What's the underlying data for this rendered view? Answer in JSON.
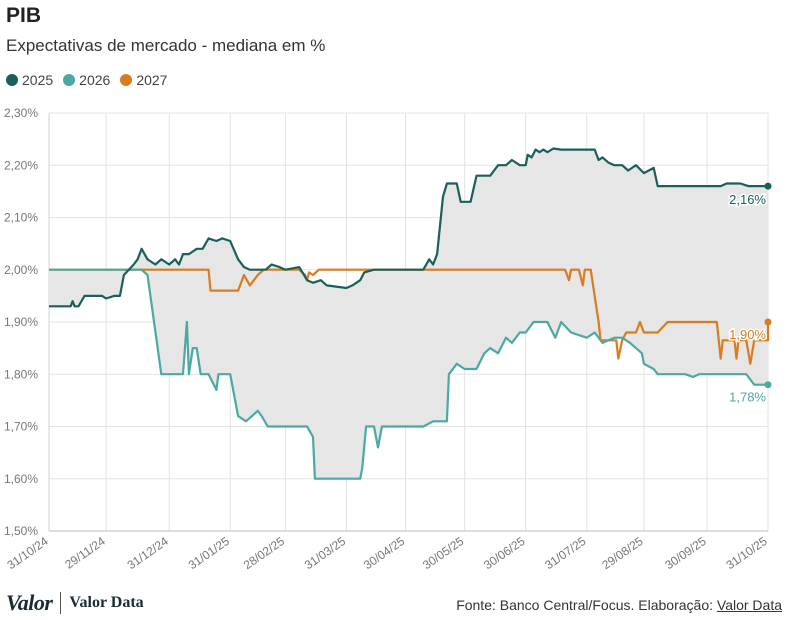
{
  "header": {
    "title": "PIB",
    "subtitle": "Expectativas de mercado - mediana em %"
  },
  "footer": {
    "logo_main": "Valor",
    "logo_secondary": "Valor Data",
    "source_prefix": "Fonte: Banco Central/Focus. Elaboração: ",
    "source_link": "Valor Data"
  },
  "chart_data": {
    "type": "line",
    "xlim": [
      "2024-10-31",
      "2025-10-31"
    ],
    "ylim": [
      1.5,
      2.3
    ],
    "yticks": [
      1.5,
      1.6,
      1.7,
      1.8,
      1.9,
      2.0,
      2.1,
      2.2,
      2.3
    ],
    "ytick_labels": [
      "1,50%",
      "1,60%",
      "1,70%",
      "1,80%",
      "1,90%",
      "2,00%",
      "2,10%",
      "2,20%",
      "2,30%"
    ],
    "xticks": [
      "2024-10-31",
      "2024-11-29",
      "2024-12-31",
      "2025-01-31",
      "2025-02-28",
      "2025-03-31",
      "2025-04-30",
      "2025-05-30",
      "2025-06-30",
      "2025-07-31",
      "2025-08-29",
      "2025-09-30",
      "2025-10-31"
    ],
    "xtick_labels": [
      "31/10/24",
      "29/11/24",
      "31/12/24",
      "31/01/25",
      "28/02/25",
      "31/03/25",
      "30/04/25",
      "30/05/25",
      "30/06/25",
      "31/07/25",
      "29/08/25",
      "30/09/25",
      "31/10/25"
    ],
    "grid": true,
    "legend_position": "top-left",
    "shaded_band": "between 2025 and 2026 series",
    "series": [
      {
        "name": "2025",
        "color": "#1b5f5c",
        "end_label": "2,16%",
        "points": [
          [
            "2024-10-31",
            1.93
          ],
          [
            "2024-11-01",
            1.93
          ],
          [
            "2024-11-08",
            1.93
          ],
          [
            "2024-11-11",
            1.93
          ],
          [
            "2024-11-12",
            1.94
          ],
          [
            "2024-11-13",
            1.93
          ],
          [
            "2024-11-15",
            1.93
          ],
          [
            "2024-11-18",
            1.95
          ],
          [
            "2024-11-22",
            1.95
          ],
          [
            "2024-11-26",
            1.95
          ],
          [
            "2024-11-27",
            1.95
          ],
          [
            "2024-11-29",
            1.945
          ],
          [
            "2024-12-03",
            1.95
          ],
          [
            "2024-12-06",
            1.95
          ],
          [
            "2024-12-08",
            1.99
          ],
          [
            "2024-12-13",
            2.01
          ],
          [
            "2024-12-15",
            2.02
          ],
          [
            "2024-12-17",
            2.04
          ],
          [
            "2024-12-20",
            2.02
          ],
          [
            "2024-12-24",
            2.01
          ],
          [
            "2024-12-27",
            2.02
          ],
          [
            "2024-12-31",
            2.01
          ],
          [
            "2025-01-03",
            2.02
          ],
          [
            "2025-01-05",
            2.01
          ],
          [
            "2025-01-07",
            2.03
          ],
          [
            "2025-01-10",
            2.03
          ],
          [
            "2025-01-14",
            2.04
          ],
          [
            "2025-01-17",
            2.04
          ],
          [
            "2025-01-20",
            2.06
          ],
          [
            "2025-01-24",
            2.055
          ],
          [
            "2025-01-27",
            2.06
          ],
          [
            "2025-01-31",
            2.055
          ],
          [
            "2025-02-04",
            2.02
          ],
          [
            "2025-02-07",
            2.005
          ],
          [
            "2025-02-10",
            2.0
          ],
          [
            "2025-02-14",
            2.0
          ],
          [
            "2025-02-18",
            2.0
          ],
          [
            "2025-02-21",
            2.01
          ],
          [
            "2025-02-25",
            2.005
          ],
          [
            "2025-02-28",
            2.0
          ],
          [
            "2025-03-07",
            2.005
          ],
          [
            "2025-03-11",
            1.98
          ],
          [
            "2025-03-14",
            1.975
          ],
          [
            "2025-03-18",
            1.98
          ],
          [
            "2025-03-21",
            1.97
          ],
          [
            "2025-03-31",
            1.965
          ],
          [
            "2025-04-03",
            1.97
          ],
          [
            "2025-04-07",
            1.98
          ],
          [
            "2025-04-09",
            1.995
          ],
          [
            "2025-04-14",
            2.0
          ],
          [
            "2025-04-30",
            2.0
          ],
          [
            "2025-05-09",
            2.0
          ],
          [
            "2025-05-12",
            2.02
          ],
          [
            "2025-05-14",
            2.01
          ],
          [
            "2025-05-16",
            2.03
          ],
          [
            "2025-05-19",
            2.14
          ],
          [
            "2025-05-21",
            2.165
          ],
          [
            "2025-05-26",
            2.165
          ],
          [
            "2025-05-28",
            2.13
          ],
          [
            "2025-06-02",
            2.13
          ],
          [
            "2025-06-05",
            2.18
          ],
          [
            "2025-06-12",
            2.18
          ],
          [
            "2025-06-16",
            2.2
          ],
          [
            "2025-06-20",
            2.2
          ],
          [
            "2025-06-23",
            2.21
          ],
          [
            "2025-06-27",
            2.2
          ],
          [
            "2025-06-30",
            2.2
          ],
          [
            "2025-07-01",
            2.22
          ],
          [
            "2025-07-03",
            2.215
          ],
          [
            "2025-07-05",
            2.23
          ],
          [
            "2025-07-07",
            2.225
          ],
          [
            "2025-07-09",
            2.23
          ],
          [
            "2025-07-11",
            2.225
          ],
          [
            "2025-07-14",
            2.232
          ],
          [
            "2025-07-18",
            2.23
          ],
          [
            "2025-07-24",
            2.23
          ],
          [
            "2025-07-31",
            2.23
          ],
          [
            "2025-08-04",
            2.23
          ],
          [
            "2025-08-06",
            2.21
          ],
          [
            "2025-08-08",
            2.215
          ],
          [
            "2025-08-11",
            2.205
          ],
          [
            "2025-08-14",
            2.2
          ],
          [
            "2025-08-18",
            2.2
          ],
          [
            "2025-08-21",
            2.19
          ],
          [
            "2025-08-25",
            2.2
          ],
          [
            "2025-08-29",
            2.185
          ],
          [
            "2025-09-03",
            2.195
          ],
          [
            "2025-09-05",
            2.16
          ],
          [
            "2025-09-12",
            2.16
          ],
          [
            "2025-09-19",
            2.16
          ],
          [
            "2025-09-30",
            2.16
          ],
          [
            "2025-10-07",
            2.16
          ],
          [
            "2025-10-10",
            2.165
          ],
          [
            "2025-10-17",
            2.165
          ],
          [
            "2025-10-21",
            2.16
          ],
          [
            "2025-10-31",
            2.16
          ]
        ]
      },
      {
        "name": "2026",
        "color": "#4aa9a3",
        "end_label": "1,78%",
        "points": [
          [
            "2024-10-31",
            2.0
          ],
          [
            "2024-11-29",
            2.0
          ],
          [
            "2024-12-13",
            2.0
          ],
          [
            "2024-12-17",
            2.0
          ],
          [
            "2024-12-20",
            1.99
          ],
          [
            "2024-12-27",
            1.8
          ],
          [
            "2025-01-03",
            1.8
          ],
          [
            "2025-01-07",
            1.8
          ],
          [
            "2025-01-09",
            1.9
          ],
          [
            "2025-01-10",
            1.8
          ],
          [
            "2025-01-12",
            1.85
          ],
          [
            "2025-01-14",
            1.85
          ],
          [
            "2025-01-16",
            1.8
          ],
          [
            "2025-01-20",
            1.8
          ],
          [
            "2025-01-24",
            1.77
          ],
          [
            "2025-01-25",
            1.8
          ],
          [
            "2025-01-31",
            1.8
          ],
          [
            "2025-02-04",
            1.72
          ],
          [
            "2025-02-08",
            1.71
          ],
          [
            "2025-02-11",
            1.72
          ],
          [
            "2025-02-14",
            1.73
          ],
          [
            "2025-02-16",
            1.72
          ],
          [
            "2025-02-19",
            1.7
          ],
          [
            "2025-03-04",
            1.7
          ],
          [
            "2025-03-11",
            1.7
          ],
          [
            "2025-03-14",
            1.68
          ],
          [
            "2025-03-15",
            1.6
          ],
          [
            "2025-03-21",
            1.6
          ],
          [
            "2025-04-07",
            1.6
          ],
          [
            "2025-04-08",
            1.62
          ],
          [
            "2025-04-10",
            1.7
          ],
          [
            "2025-04-14",
            1.7
          ],
          [
            "2025-04-16",
            1.66
          ],
          [
            "2025-04-18",
            1.7
          ],
          [
            "2025-04-22",
            1.7
          ],
          [
            "2025-04-25",
            1.7
          ],
          [
            "2025-04-30",
            1.7
          ],
          [
            "2025-05-09",
            1.7
          ],
          [
            "2025-05-14",
            1.71
          ],
          [
            "2025-05-21",
            1.71
          ],
          [
            "2025-05-22",
            1.8
          ],
          [
            "2025-05-26",
            1.82
          ],
          [
            "2025-05-30",
            1.81
          ],
          [
            "2025-06-05",
            1.81
          ],
          [
            "2025-06-09",
            1.84
          ],
          [
            "2025-06-12",
            1.85
          ],
          [
            "2025-06-16",
            1.84
          ],
          [
            "2025-06-20",
            1.87
          ],
          [
            "2025-06-23",
            1.86
          ],
          [
            "2025-06-27",
            1.88
          ],
          [
            "2025-06-30",
            1.88
          ],
          [
            "2025-07-04",
            1.9
          ],
          [
            "2025-07-11",
            1.9
          ],
          [
            "2025-07-15",
            1.87
          ],
          [
            "2025-07-18",
            1.9
          ],
          [
            "2025-07-23",
            1.88
          ],
          [
            "2025-07-31",
            1.87
          ],
          [
            "2025-08-04",
            1.88
          ],
          [
            "2025-08-08",
            1.86
          ],
          [
            "2025-08-14",
            1.87
          ],
          [
            "2025-08-18",
            1.87
          ],
          [
            "2025-08-22",
            1.86
          ],
          [
            "2025-08-28",
            1.84
          ],
          [
            "2025-08-29",
            1.82
          ],
          [
            "2025-09-03",
            1.81
          ],
          [
            "2025-09-05",
            1.8
          ],
          [
            "2025-09-19",
            1.8
          ],
          [
            "2025-09-23",
            1.795
          ],
          [
            "2025-09-26",
            1.8
          ],
          [
            "2025-09-30",
            1.8
          ],
          [
            "2025-10-10",
            1.8
          ],
          [
            "2025-10-20",
            1.8
          ],
          [
            "2025-10-24",
            1.78
          ],
          [
            "2025-10-31",
            1.78
          ]
        ]
      },
      {
        "name": "2027",
        "color": "#d97c1e",
        "end_label": "1,90%",
        "points": [
          [
            "2024-10-31",
            2.0
          ],
          [
            "2024-11-29",
            2.0
          ],
          [
            "2024-12-31",
            2.0
          ],
          [
            "2025-01-20",
            2.0
          ],
          [
            "2025-01-21",
            1.96
          ],
          [
            "2025-01-31",
            1.96
          ],
          [
            "2025-02-04",
            1.96
          ],
          [
            "2025-02-07",
            1.99
          ],
          [
            "2025-02-10",
            1.97
          ],
          [
            "2025-02-14",
            1.99
          ],
          [
            "2025-02-17",
            2.0
          ],
          [
            "2025-02-28",
            2.0
          ],
          [
            "2025-03-07",
            2.0
          ],
          [
            "2025-03-10",
            1.99
          ],
          [
            "2025-03-11",
            1.98
          ],
          [
            "2025-03-12",
            1.995
          ],
          [
            "2025-03-14",
            1.99
          ],
          [
            "2025-03-17",
            2.0
          ],
          [
            "2025-03-31",
            2.0
          ],
          [
            "2025-04-30",
            2.0
          ],
          [
            "2025-05-30",
            2.0
          ],
          [
            "2025-06-30",
            2.0
          ],
          [
            "2025-07-20",
            2.0
          ],
          [
            "2025-07-22",
            1.98
          ],
          [
            "2025-07-23",
            2.0
          ],
          [
            "2025-07-27",
            2.0
          ],
          [
            "2025-07-29",
            1.97
          ],
          [
            "2025-07-30",
            2.0
          ],
          [
            "2025-08-02",
            2.0
          ],
          [
            "2025-08-06",
            1.9
          ],
          [
            "2025-08-07",
            1.865
          ],
          [
            "2025-08-15",
            1.865
          ],
          [
            "2025-08-16",
            1.83
          ],
          [
            "2025-08-18",
            1.865
          ],
          [
            "2025-08-20",
            1.88
          ],
          [
            "2025-08-25",
            1.88
          ],
          [
            "2025-08-27",
            1.9
          ],
          [
            "2025-08-29",
            1.88
          ],
          [
            "2025-09-05",
            1.88
          ],
          [
            "2025-09-10",
            1.9
          ],
          [
            "2025-09-30",
            1.9
          ],
          [
            "2025-10-05",
            1.9
          ],
          [
            "2025-10-07",
            1.83
          ],
          [
            "2025-10-08",
            1.865
          ],
          [
            "2025-10-14",
            1.865
          ],
          [
            "2025-10-15",
            1.83
          ],
          [
            "2025-10-16",
            1.865
          ],
          [
            "2025-10-20",
            1.865
          ],
          [
            "2025-10-22",
            1.82
          ],
          [
            "2025-10-24",
            1.865
          ],
          [
            "2025-10-31",
            1.865
          ],
          [
            "2025-10-31",
            1.9
          ]
        ]
      }
    ]
  }
}
